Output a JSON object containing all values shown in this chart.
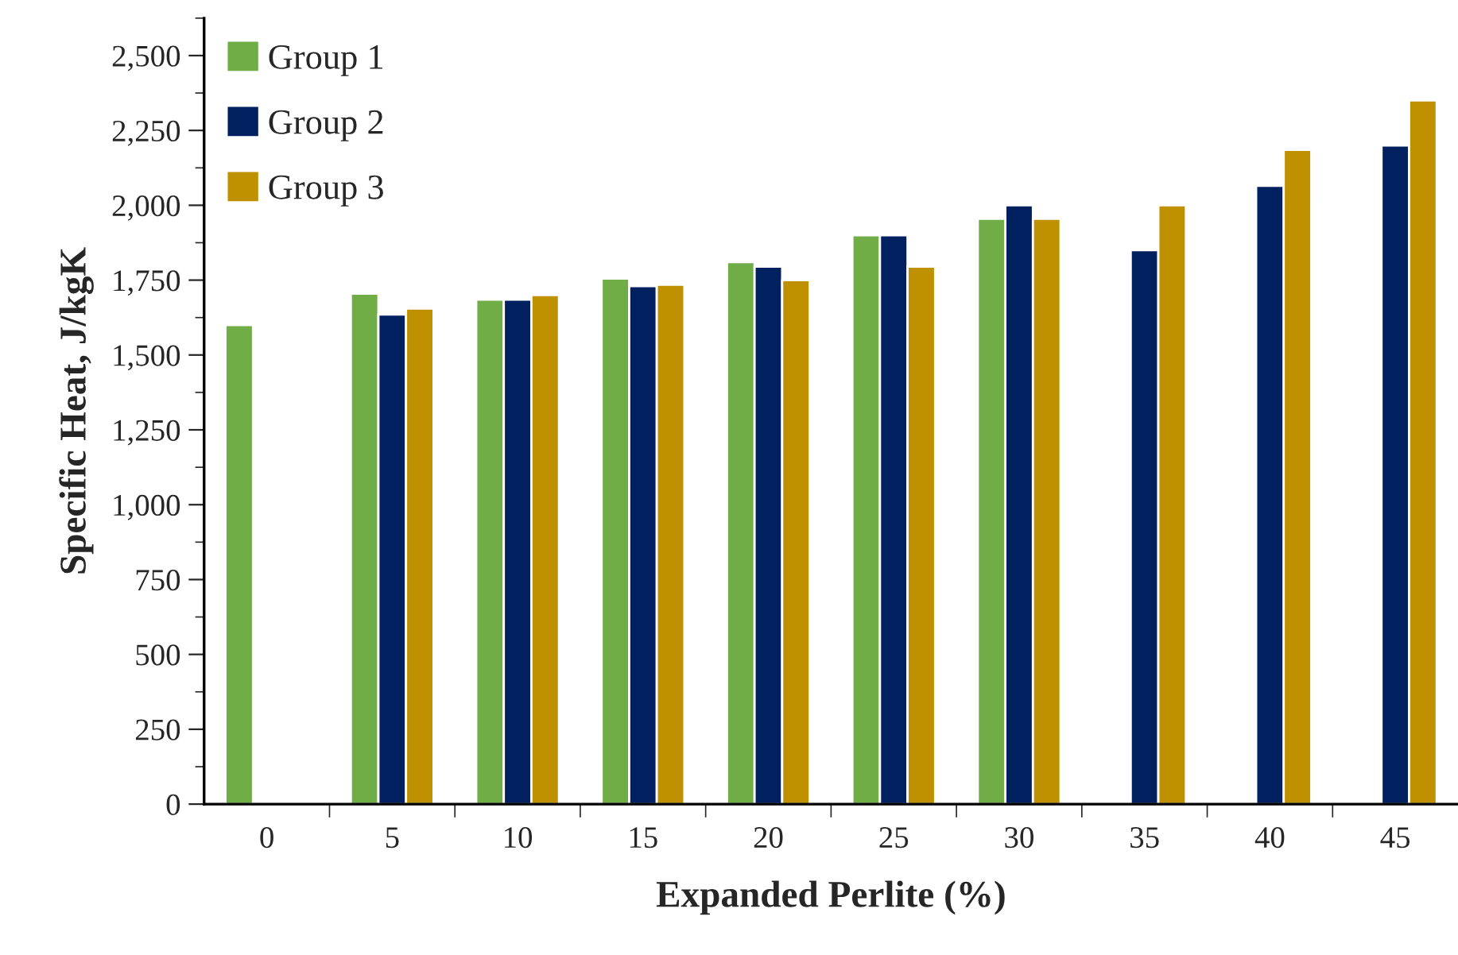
{
  "chart_data": {
    "type": "bar",
    "xlabel": "Expanded Perlite (%)",
    "ylabel": "Specific Heat, J/kgK",
    "categories": [
      "0",
      "5",
      "10",
      "15",
      "20",
      "25",
      "30",
      "35",
      "40",
      "45"
    ],
    "series": [
      {
        "name": "Group 1",
        "color": "#70ad47",
        "values": [
          1600,
          1705,
          1685,
          1755,
          1810,
          1900,
          1955,
          null,
          null,
          null
        ]
      },
      {
        "name": "Group 2",
        "color": "#002060",
        "values": [
          null,
          1635,
          1685,
          1730,
          1795,
          1900,
          2000,
          1850,
          2065,
          2200
        ]
      },
      {
        "name": "Group 3",
        "color": "#bf9000",
        "values": [
          null,
          1655,
          1700,
          1735,
          1750,
          1795,
          1955,
          2000,
          2185,
          2350
        ]
      }
    ],
    "ylim": [
      0,
      2625
    ],
    "yticks": [
      0,
      {
        "value": 125,
        "label": null
      },
      250,
      {
        "value": 375,
        "label": null
      },
      500,
      {
        "value": 625,
        "label": null
      },
      750,
      {
        "value": 875,
        "label": null
      },
      {
        "value": 1000,
        "label": "1,000"
      },
      {
        "value": 1125,
        "label": null
      },
      {
        "value": 1250,
        "label": "1,250"
      },
      {
        "value": 1375,
        "label": null
      },
      {
        "value": 1500,
        "label": "1,500"
      },
      {
        "value": 1625,
        "label": null
      },
      {
        "value": 1750,
        "label": "1,750"
      },
      {
        "value": 1875,
        "label": null
      },
      {
        "value": 2000,
        "label": "2,000"
      },
      {
        "value": 2125,
        "label": null
      },
      {
        "value": 2250,
        "label": "2,250"
      },
      {
        "value": 2375,
        "label": null
      },
      {
        "value": 2500,
        "label": "2,500"
      },
      {
        "value": 2625,
        "label": null
      }
    ],
    "grid": false,
    "legend": "top left"
  }
}
